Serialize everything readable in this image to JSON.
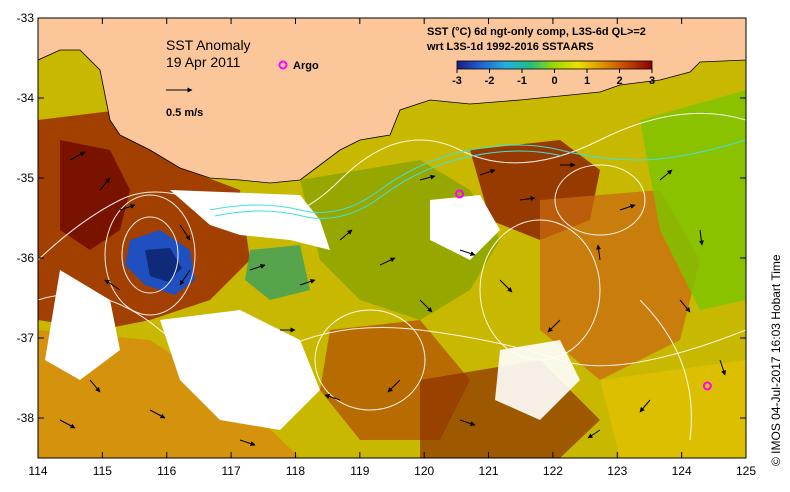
{
  "map": {
    "title_line1": "SST Anomaly",
    "title_line2": "19 Apr 2011",
    "argo_label": "Argo",
    "vector_scale_label": "0.5 m/s",
    "product_line1": "SST (°C) 6d ngt-only comp, L3S-6d QL>=2",
    "product_line2": "wrt L3S-1d 1992-2016 SSTAARS",
    "credit": "©  IMOS 04-Jul-2017 16:03 Hobart Time",
    "colorbar_ticks": [
      "-3",
      "-2",
      "-1",
      "0",
      "1",
      "2",
      "3"
    ],
    "colorbar_range": [
      -3,
      3
    ],
    "lon_ticks": [
      "114",
      "115",
      "116",
      "117",
      "118",
      "119",
      "120",
      "121",
      "122",
      "123",
      "124",
      "125"
    ],
    "lat_ticks": [
      "-33",
      "-34",
      "-35",
      "-36",
      "-37",
      "-38"
    ],
    "lon_range": [
      114,
      125
    ],
    "lat_range": [
      -33,
      -38.5
    ],
    "argo_floats": [
      {
        "lon": 120.55,
        "lat": -35.2
      },
      {
        "lon": 124.4,
        "lat": -37.6
      }
    ],
    "colors": {
      "land": "#fbc79a",
      "argo": "#ff00ff",
      "warm_dark": "#8b1a00",
      "warm": "#d2691e",
      "mild": "#e8b800",
      "neutral": "#b8d800",
      "cool": "#58c800",
      "cold": "#1f3ca0",
      "current_line": "#40e0e0",
      "contour": "#ffffff"
    }
  }
}
